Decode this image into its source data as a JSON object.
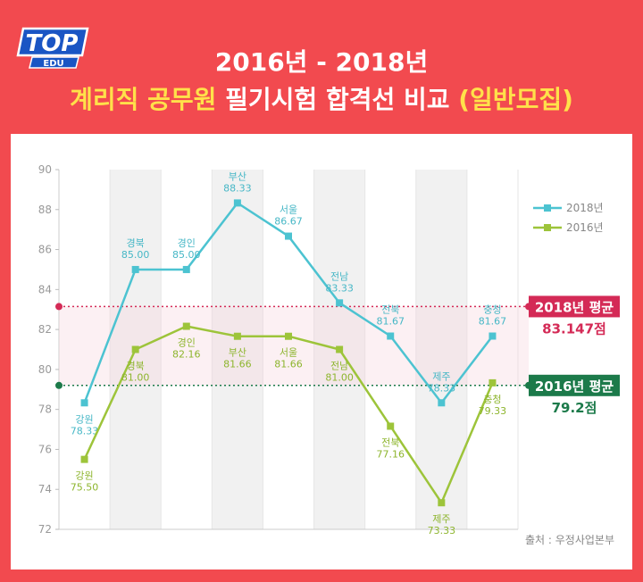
{
  "header": {
    "title_line1": "2016년 - 2018년",
    "title_line2_highlight_a": "계리직 공무원",
    "title_line2_white": "필기시험 합격선 비교",
    "title_line2_highlight_b": "(일반모집)"
  },
  "logo": {
    "text_main": "TOP",
    "text_sub": "EDU"
  },
  "source": "출처 : 우정사업본부",
  "colors": {
    "background": "#f24a4f",
    "series_2018": "#4cc3d1",
    "series_2016": "#9dc43a",
    "avg_2018": "#d42a56",
    "avg_2016": "#1c7a4a",
    "label_2018": "#46b7c6",
    "label_2016": "#8db52d"
  },
  "chart_data": {
    "type": "line",
    "categories": [
      "강원",
      "경북",
      "경인",
      "부산",
      "서울",
      "전남",
      "전북",
      "제주",
      "충청"
    ],
    "series": [
      {
        "name": "2018년",
        "values": [
          78.33,
          85.0,
          85.0,
          88.33,
          86.67,
          83.33,
          81.67,
          78.33,
          81.67
        ],
        "labels": [
          "78.33",
          "85.00",
          "85.00",
          "88.33",
          "86.67",
          "83.33",
          "81.67",
          "78.33",
          "81.67"
        ]
      },
      {
        "name": "2016년",
        "values": [
          75.5,
          81.0,
          82.16,
          81.66,
          81.66,
          81.0,
          77.16,
          73.33,
          79.33
        ],
        "labels": [
          "75.50",
          "81.00",
          "82.16",
          "81.66",
          "81.66",
          "81.00",
          "77.16",
          "73.33",
          "79.33"
        ]
      }
    ],
    "averages": [
      {
        "name": "2018년 평균",
        "value": 83.147,
        "value_label": "83.147점"
      },
      {
        "name": "2016년 평균",
        "value": 79.2,
        "value_label": "79.2점"
      }
    ],
    "yticks": [
      72,
      74,
      76,
      78,
      80,
      82,
      84,
      86,
      88,
      90
    ],
    "ylim": [
      72,
      90
    ],
    "legend_position": "top-right",
    "grid": false
  }
}
